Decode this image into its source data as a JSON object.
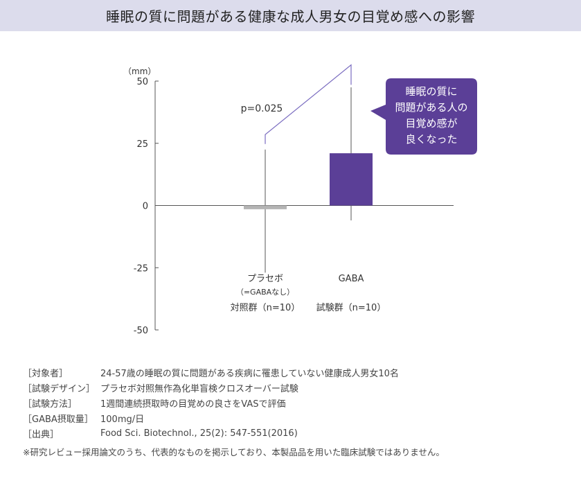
{
  "title": "睡眠の質に問題がある健康な成人男女の目覚め感への影響",
  "chart_data": {
    "type": "bar",
    "unit_label": "（mm）",
    "ylim": [
      -50,
      50
    ],
    "yticks": [
      "50",
      "25",
      "0",
      "-25",
      "-50"
    ],
    "ytick_values": [
      50,
      25,
      0,
      -25,
      -50
    ],
    "bars": [
      {
        "name": "プラセボ",
        "sub": "（=GABAなし）",
        "group": "対照群（n=10）",
        "value": -1.5,
        "err_low": -27,
        "err_high": 22.5,
        "color": "#b4b4b4"
      },
      {
        "name": "GABA",
        "sub": "",
        "group": "試験群（n=10）",
        "value": 21,
        "err_low": -6,
        "err_high": 47.5,
        "color": "#5b3f97"
      }
    ],
    "p_value": "p=0.025",
    "callout": [
      "睡眠の質に",
      "問題がある人の",
      "目覚め感が",
      "良くなった"
    ],
    "colors": {
      "accent": "#5b3f97",
      "placebo": "#b4b4b4",
      "bracket": "#7a6cc0"
    }
  },
  "notes": [
    {
      "label": "［対象者］",
      "value": "24-57歳の睡眠の質に問題がある疾病に罹患していない健康成人男女10名"
    },
    {
      "label": "［試験デザイン］",
      "value": "プラセボ対照無作為化単盲検クロスオーバー試験"
    },
    {
      "label": "［試験方法］",
      "value": "1週間連続摂取時の目覚めの良さをVASで評価"
    },
    {
      "label": "［GABA摂取量］",
      "value": "100mg/日"
    },
    {
      "label": "［出典］",
      "value": "Food Sci. Biotechnol., 25(2): 547-551(2016)"
    }
  ],
  "footnote": "※研究レビュー採用論文のうち、代表的なものを掲示しており、本製品品を用いた臨床試験ではありません。"
}
